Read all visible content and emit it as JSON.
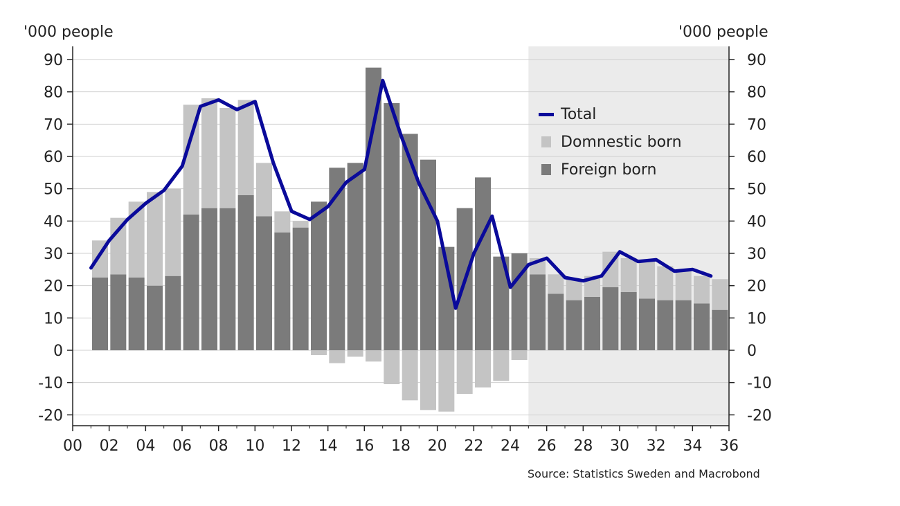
{
  "chart_data": {
    "type": "bar",
    "ylabel_left": "'000 people",
    "ylabel_right": "'000 people",
    "source": "Source: Statistics Sweden and Macrobond",
    "ylim": [
      -20,
      90
    ],
    "yticks": [
      90,
      80,
      70,
      60,
      50,
      40,
      30,
      20,
      10,
      0,
      -10,
      -20
    ],
    "xlim": [
      2000,
      2036
    ],
    "xticks": [
      "00",
      "02",
      "04",
      "06",
      "08",
      "10",
      "12",
      "14",
      "16",
      "18",
      "20",
      "22",
      "24",
      "26",
      "28",
      "30",
      "32",
      "34",
      "36"
    ],
    "grid": true,
    "forecast_shading_start": 2025,
    "legend_position": "inside-right",
    "colors": {
      "total": "#0a0a9a",
      "domestic": "#c4c4c4",
      "foreign": "#7b7b7b",
      "forecast_bg": "#ebebeb"
    },
    "categories": [
      2001,
      2002,
      2003,
      2004,
      2005,
      2006,
      2007,
      2008,
      2009,
      2010,
      2011,
      2012,
      2013,
      2014,
      2015,
      2016,
      2017,
      2018,
      2019,
      2020,
      2021,
      2022,
      2023,
      2024,
      2025,
      2026,
      2027,
      2028,
      2029,
      2030,
      2031,
      2032,
      2033,
      2034,
      2035
    ],
    "series": [
      {
        "name": "Total",
        "type": "line",
        "values": [
          25.5,
          34,
          40.5,
          45.5,
          49.5,
          57,
          75.5,
          77.5,
          74.5,
          77,
          58,
          43,
          40.5,
          44.5,
          52,
          56,
          83.5,
          66.5,
          51.5,
          40,
          13,
          30,
          41.5,
          19.5,
          26.5,
          28.5,
          22.5,
          21.5,
          23,
          30.5,
          27.5,
          28,
          24.5,
          25,
          23
        ]
      },
      {
        "name": "Domnestic born",
        "type": "bar",
        "values": [
          11.5,
          17.5,
          23.5,
          29,
          27,
          34,
          34,
          31,
          29.5,
          16.5,
          6.5,
          2,
          -1.5,
          -4,
          -2,
          -3.5,
          -10.5,
          -15.5,
          -18.5,
          -19,
          -13.5,
          -11.5,
          -9.5,
          -3,
          5,
          6,
          6.5,
          6.5,
          11,
          10.5,
          12,
          10.5,
          9,
          8.5,
          9.5
        ]
      },
      {
        "name": "Foreign born",
        "type": "bar",
        "values": [
          22.5,
          23.5,
          22.5,
          20,
          23,
          42,
          44,
          44,
          48,
          41.5,
          36.5,
          38,
          46,
          56.5,
          58,
          87.5,
          76.5,
          67,
          59,
          32,
          44,
          53.5,
          29,
          30,
          23.5,
          17.5,
          15.5,
          16.5,
          19.5,
          18,
          16,
          15.5,
          15.5,
          14.5,
          12.5
        ]
      }
    ]
  }
}
